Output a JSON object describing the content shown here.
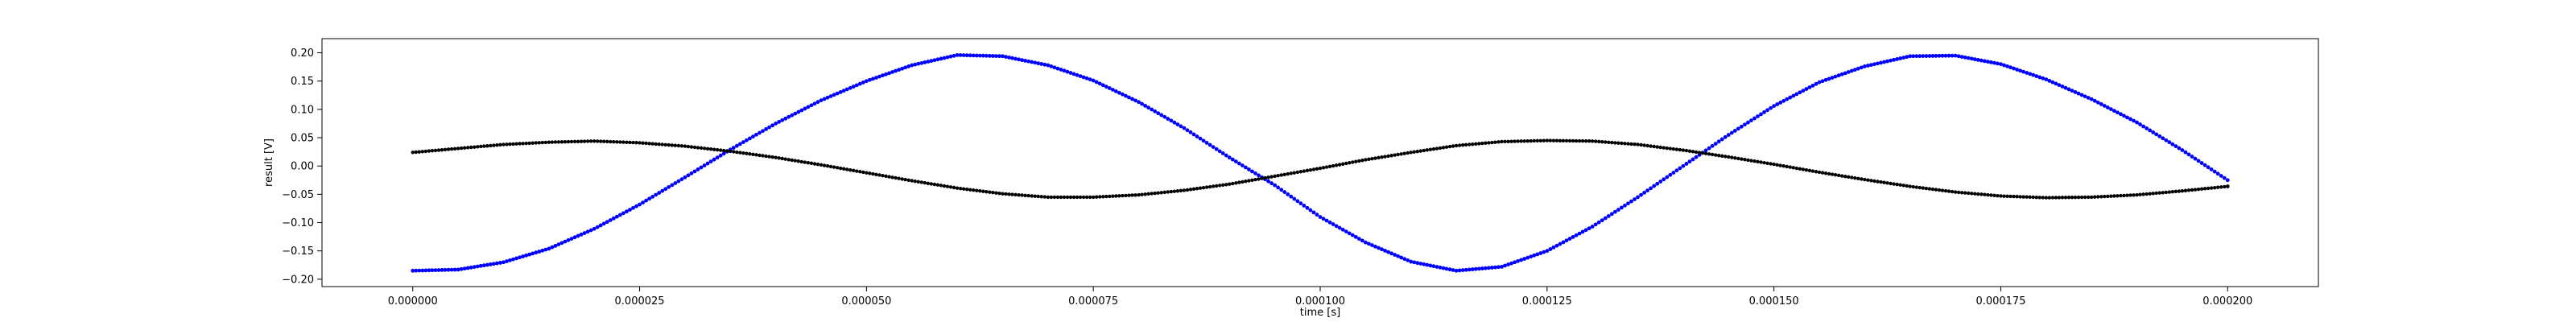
{
  "chart_data": {
    "type": "scatter",
    "title": "",
    "xlabel": "time [s]",
    "ylabel": "result [V]",
    "xlim": [
      -1e-05,
      0.00021
    ],
    "ylim": [
      -0.213,
      0.225
    ],
    "grid": false,
    "x_ticks": [
      {
        "value": 0.0,
        "label": "0.000000"
      },
      {
        "value": 2.5e-05,
        "label": "0.000025"
      },
      {
        "value": 5e-05,
        "label": "0.000050"
      },
      {
        "value": 7.5e-05,
        "label": "0.000075"
      },
      {
        "value": 0.0001,
        "label": "0.000100"
      },
      {
        "value": 0.000125,
        "label": "0.000125"
      },
      {
        "value": 0.00015,
        "label": "0.000150"
      },
      {
        "value": 0.000175,
        "label": "0.000175"
      },
      {
        "value": 0.0002,
        "label": "0.000200"
      }
    ],
    "y_ticks": [
      {
        "value": 0.2,
        "label": "0.20"
      },
      {
        "value": 0.15,
        "label": "0.15"
      },
      {
        "value": 0.1,
        "label": "0.10"
      },
      {
        "value": 0.05,
        "label": "0.05"
      },
      {
        "value": 0.0,
        "label": "0.00"
      },
      {
        "value": -0.05,
        "label": "−0.05"
      },
      {
        "value": -0.1,
        "label": "−0.10"
      },
      {
        "value": -0.15,
        "label": "−0.15"
      },
      {
        "value": -0.2,
        "label": "−0.20"
      }
    ],
    "series": [
      {
        "color": "#0000ff",
        "x": [
          0.0,
          5e-06,
          1e-05,
          1.5e-05,
          2e-05,
          2.5e-05,
          3e-05,
          3.5e-05,
          4e-05,
          4.5e-05,
          5e-05,
          5.5e-05,
          6e-05,
          6.5e-05,
          7e-05,
          7.5e-05,
          8e-05,
          8.5e-05,
          9e-05,
          9.5e-05,
          0.0001,
          0.000105,
          0.00011,
          0.000115,
          0.00012,
          0.000125,
          0.00013,
          0.000135,
          0.00014,
          0.000145,
          0.00015,
          0.000155,
          0.00016,
          0.000165,
          0.00017,
          0.000175,
          0.00018,
          0.000185,
          0.00019,
          0.000195,
          0.0002
        ],
        "y": [
          -0.185,
          -0.183,
          -0.17,
          -0.146,
          -0.111,
          -0.068,
          -0.02,
          0.029,
          0.075,
          0.116,
          0.15,
          0.178,
          0.196,
          0.194,
          0.178,
          0.151,
          0.113,
          0.067,
          0.015,
          -0.034,
          -0.09,
          -0.135,
          -0.169,
          -0.185,
          -0.178,
          -0.15,
          -0.107,
          -0.055,
          0.0,
          0.055,
          0.106,
          0.148,
          0.176,
          0.194,
          0.195,
          0.18,
          0.153,
          0.118,
          0.077,
          0.028,
          -0.025
        ]
      },
      {
        "color": "#000000",
        "x": [
          0.0,
          5e-06,
          1e-05,
          1.5e-05,
          2e-05,
          2.5e-05,
          3e-05,
          3.5e-05,
          4e-05,
          4.5e-05,
          5e-05,
          5.5e-05,
          6e-05,
          6.5e-05,
          7e-05,
          7.5e-05,
          8e-05,
          8.5e-05,
          9e-05,
          9.5e-05,
          0.0001,
          0.000105,
          0.00011,
          0.000115,
          0.00012,
          0.000125,
          0.00013,
          0.000135,
          0.00014,
          0.000145,
          0.00015,
          0.000155,
          0.00016,
          0.000165,
          0.00017,
          0.000175,
          0.00018,
          0.000185,
          0.00019,
          0.000195,
          0.0002
        ],
        "y": [
          0.024,
          0.031,
          0.038,
          0.042,
          0.044,
          0.041,
          0.035,
          0.026,
          0.015,
          0.002,
          -0.012,
          -0.026,
          -0.039,
          -0.049,
          -0.055,
          -0.055,
          -0.051,
          -0.043,
          -0.032,
          -0.018,
          -0.004,
          0.011,
          0.024,
          0.036,
          0.043,
          0.045,
          0.044,
          0.038,
          0.028,
          0.016,
          0.003,
          -0.011,
          -0.024,
          -0.036,
          -0.046,
          -0.053,
          -0.056,
          -0.055,
          -0.051,
          -0.044,
          -0.036
        ]
      }
    ]
  }
}
